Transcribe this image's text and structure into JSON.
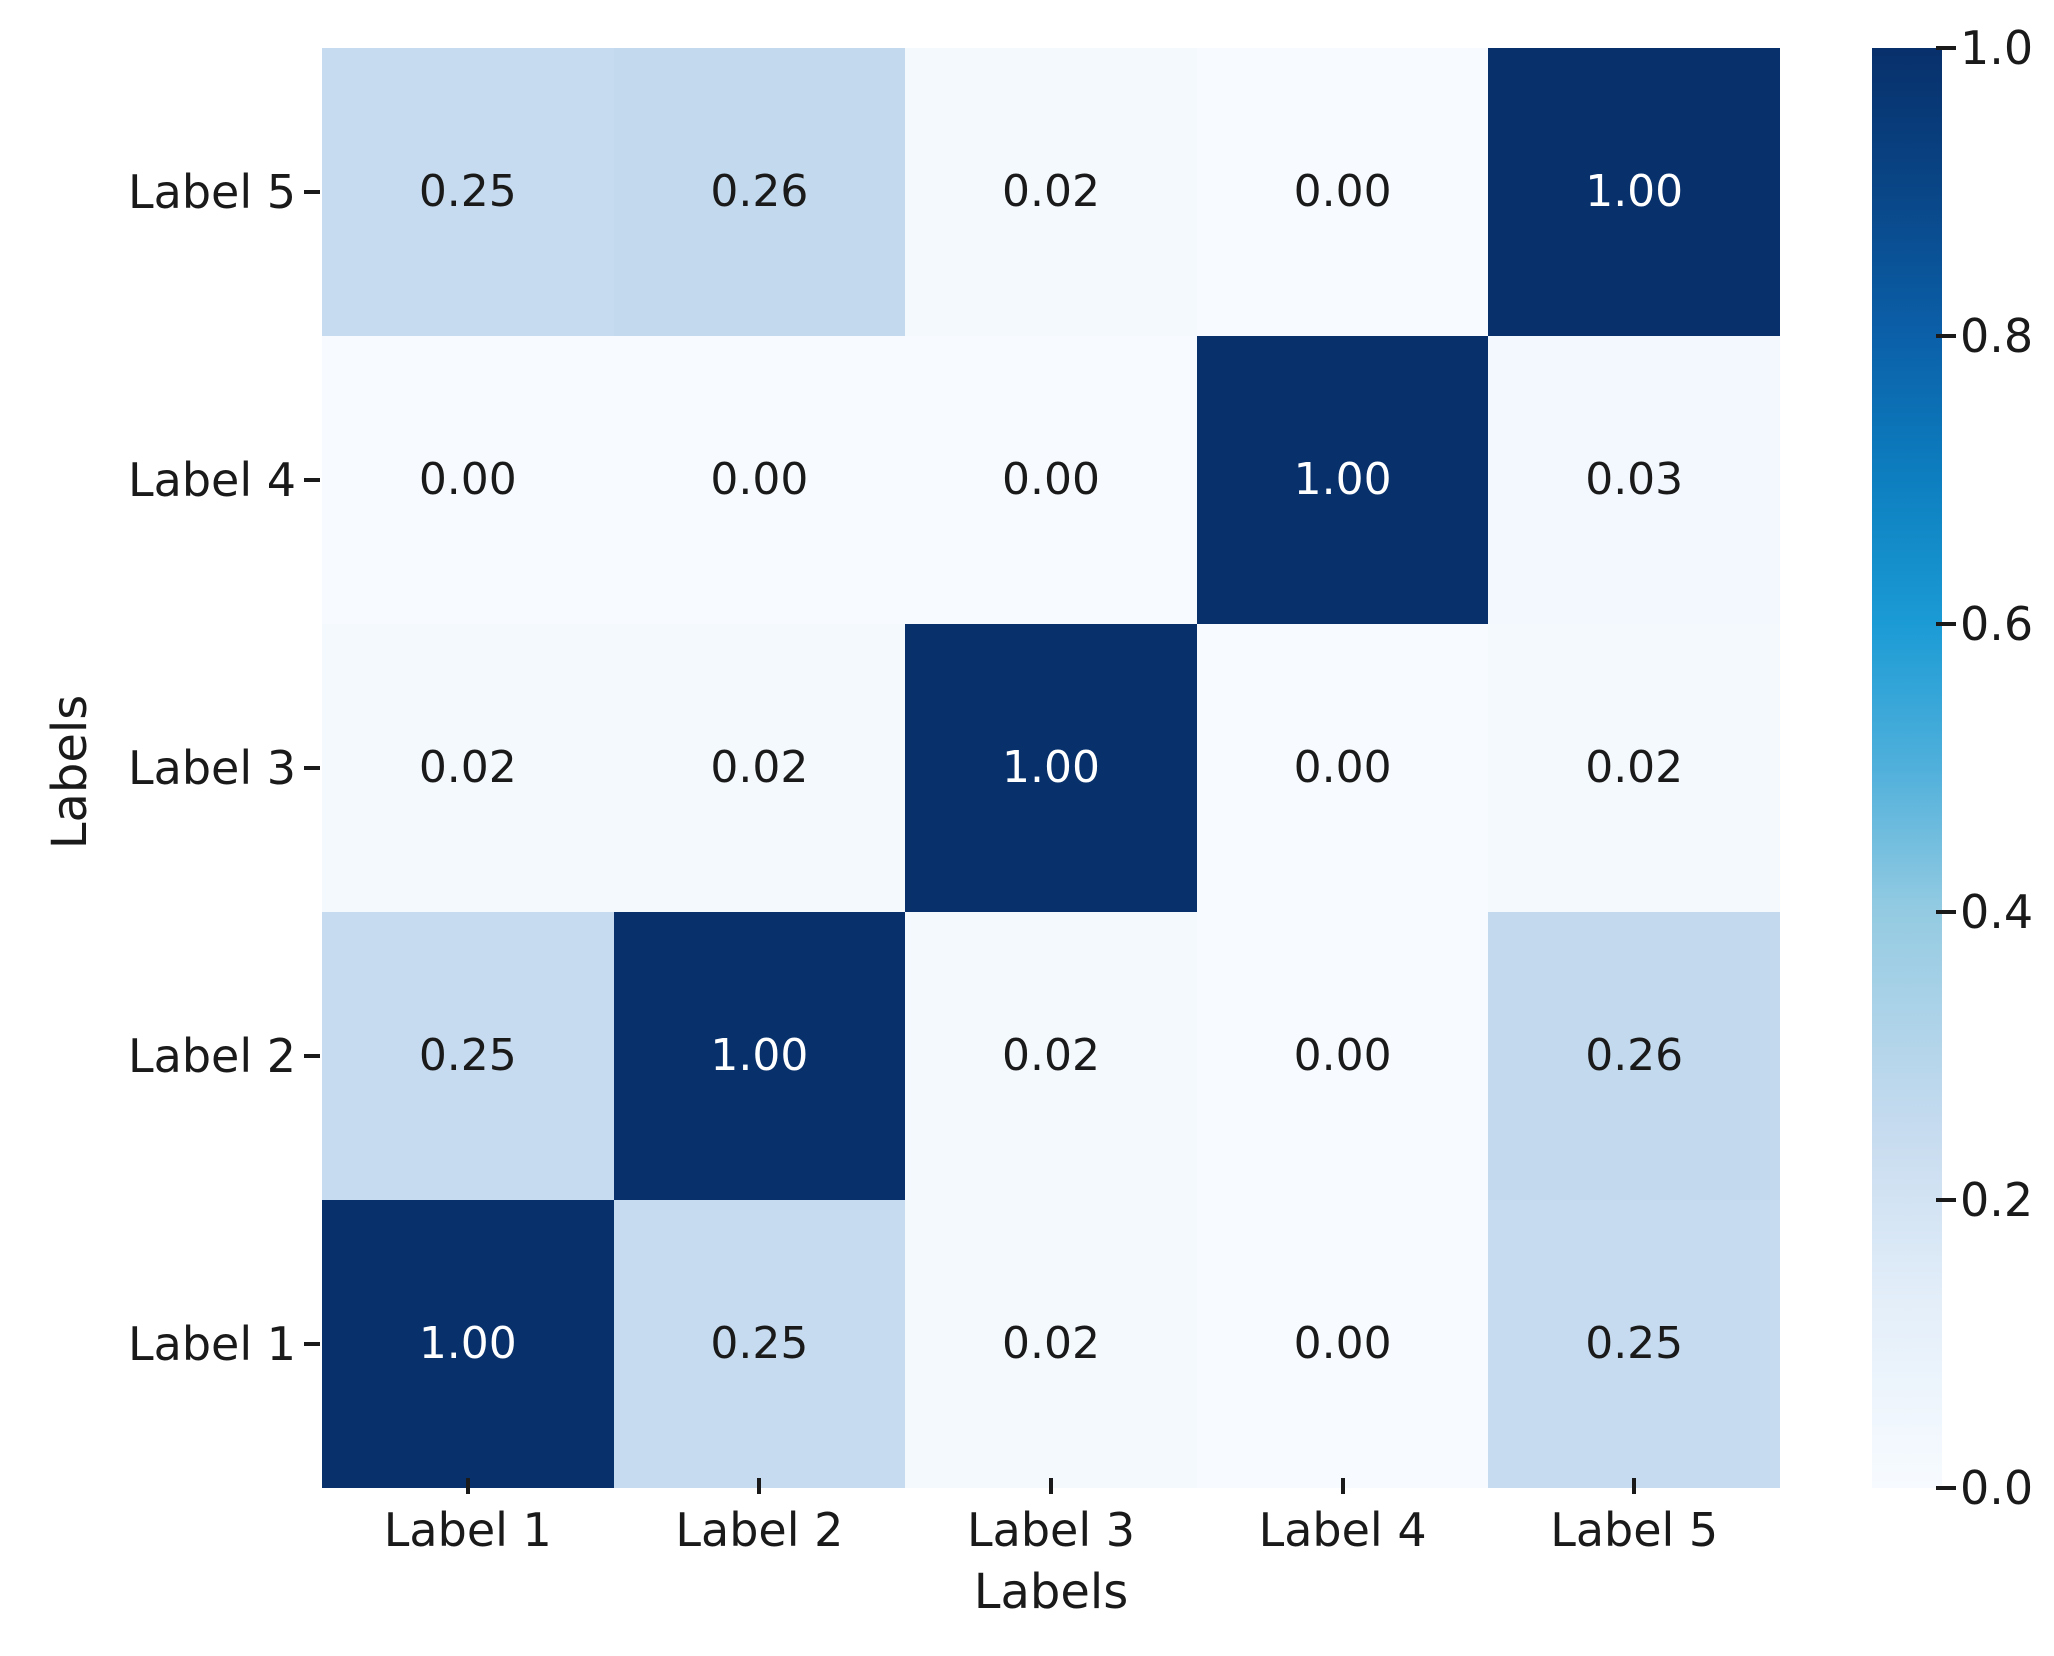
{
  "chart_data": {
    "type": "heatmap",
    "title": "",
    "xlabel": "Labels",
    "ylabel": "Labels",
    "x_categories": [
      "Label 1",
      "Label 2",
      "Label 3",
      "Label 4",
      "Label 5"
    ],
    "y_categories_top_to_bottom": [
      "Label 5",
      "Label 4",
      "Label 3",
      "Label 2",
      "Label 1"
    ],
    "series": [
      {
        "name": "Label 5",
        "values": [
          0.25,
          0.26,
          0.02,
          0.0,
          1.0
        ]
      },
      {
        "name": "Label 4",
        "values": [
          0.0,
          0.0,
          0.0,
          1.0,
          0.03
        ]
      },
      {
        "name": "Label 3",
        "values": [
          0.02,
          0.02,
          1.0,
          0.0,
          0.02
        ]
      },
      {
        "name": "Label 2",
        "values": [
          0.25,
          1.0,
          0.02,
          0.0,
          0.26
        ]
      },
      {
        "name": "Label 1",
        "values": [
          1.0,
          0.25,
          0.02,
          0.0,
          0.25
        ]
      }
    ],
    "value_decimals": 2,
    "vmin": 0.0,
    "vmax": 1.0,
    "grid": false,
    "legend": false,
    "colorbar": {
      "position": "right",
      "tick_labels": [
        "1.0",
        "0.8",
        "0.6",
        "0.4",
        "0.2",
        "0.0"
      ],
      "tick_values": [
        1.0,
        0.8,
        0.6,
        0.4,
        0.2,
        0.0
      ]
    },
    "colormap": {
      "name": "Blues",
      "stops": [
        {
          "t": 0.0,
          "c": "#f7fbff"
        },
        {
          "t": 0.13,
          "c": "#e3eef9"
        },
        {
          "t": 0.25,
          "c": "#c6dbef"
        },
        {
          "t": 0.4,
          "c": "#94cbe2"
        },
        {
          "t": 0.5,
          "c": "#50b0db"
        },
        {
          "t": 0.6,
          "c": "#1b9bd5"
        },
        {
          "t": 0.7,
          "c": "#0d7fc0"
        },
        {
          "t": 0.8,
          "c": "#0b60a9"
        },
        {
          "t": 0.9,
          "c": "#094687"
        },
        {
          "t": 1.0,
          "c": "#08306b"
        }
      ]
    },
    "annotation_colors": {
      "on_light": "#1a1a1a",
      "on_dark": "#ffffff",
      "dark_text_threshold": 0.5
    },
    "tick_color": "#1a1a1a"
  }
}
